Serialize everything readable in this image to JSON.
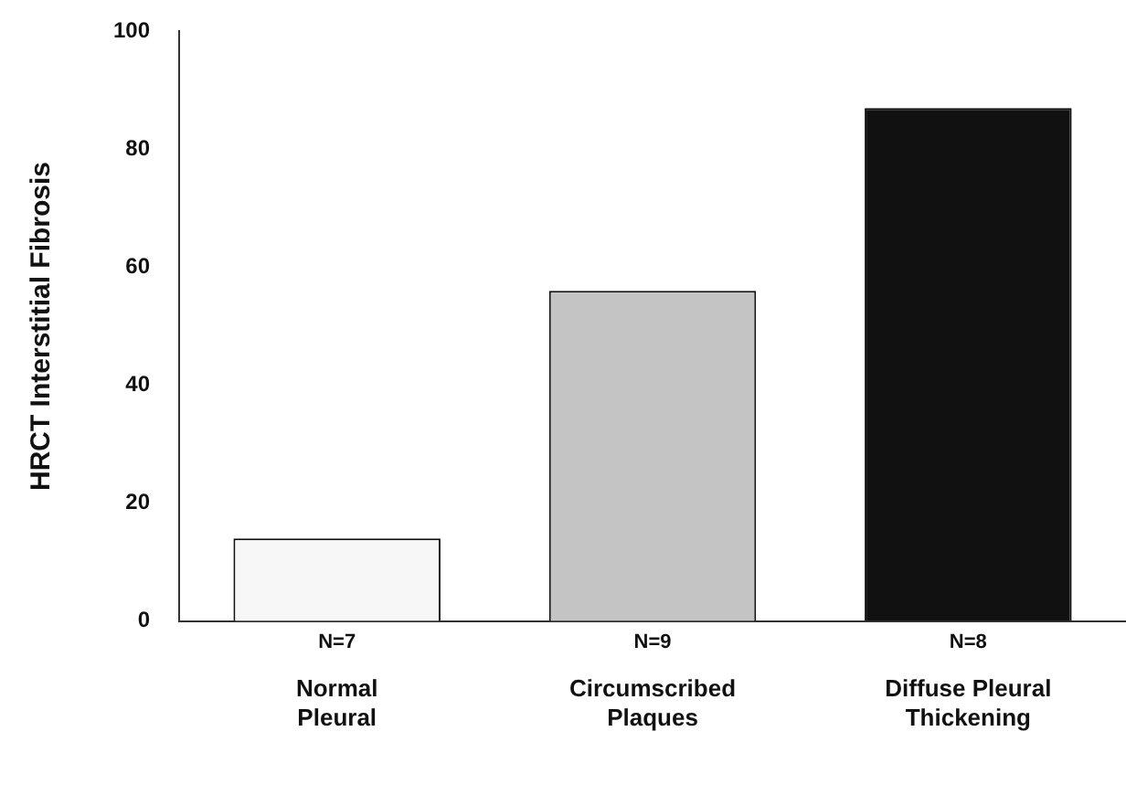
{
  "chart_data": {
    "type": "bar",
    "ylabel": "HRCT Interstitial Fibrosis",
    "categories": [
      "Normal\nPleural",
      "Circumscribed\nPlaques",
      "Diffuse Pleural\nThickening"
    ],
    "values": [
      14,
      56,
      87
    ],
    "colors": [
      "#f7f7f7",
      "#c4c4c4",
      "#111111"
    ],
    "ylim": [
      0,
      100
    ],
    "yticks": [
      0,
      20,
      40,
      60,
      80,
      100
    ],
    "grid": false,
    "legend": false,
    "annotations": [
      "N=7",
      "N=9",
      "N=8"
    ]
  }
}
